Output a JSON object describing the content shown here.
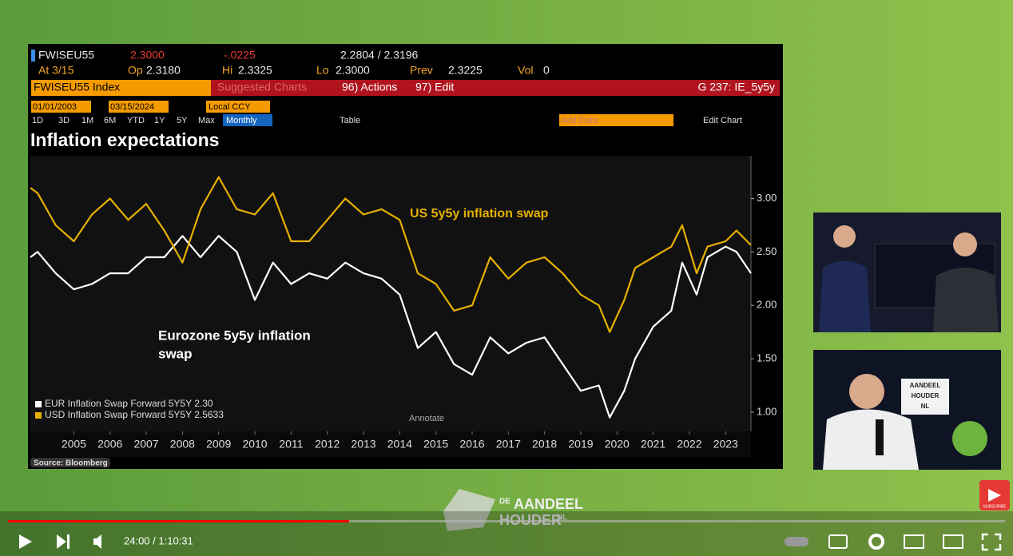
{
  "terminal": {
    "ticker": "FWISEU55",
    "last": "2.3000",
    "change": "-.0225",
    "range": "2.2804 / 2.3196",
    "at": "At 3/15",
    "op_label": "Op",
    "op": "2.3180",
    "hi_label": "Hi",
    "hi": "2.3325",
    "lo_label": "Lo",
    "lo": "2.3000",
    "prev_label": "Prev",
    "prev": "2.3225",
    "vol_label": "Vol",
    "vol": "0",
    "index": "FWISEU55 Index",
    "suggested": "Suggested Charts",
    "actions": "96) Actions",
    "edit": "97) Edit",
    "chart_id": "G 237: IE_5y5y",
    "start_date": "01/01/2003",
    "end_date": "03/15/2024",
    "currency": "Local CCY",
    "periods": [
      "1D",
      "3D",
      "1M",
      "6M",
      "YTD",
      "1Y",
      "5Y",
      "Max"
    ],
    "frequency": "Monthly",
    "table": "Table",
    "add_data": "Add Data",
    "edit_chart": "Edit Chart",
    "annotate": "Annotate",
    "source": "Source: Bloomberg"
  },
  "chart_data": {
    "type": "line",
    "title": "Inflation expectations",
    "annotations": [
      "US 5y5y inflation swap",
      "Eurozone 5y5y inflation",
      "swap"
    ],
    "x": [
      2004.3,
      2004.5,
      2005.0,
      2005.5,
      2006.0,
      2006.5,
      2007.0,
      2007.5,
      2008.0,
      2008.5,
      2009.0,
      2009.5,
      2010.0,
      2010.5,
      2011.0,
      2011.5,
      2012.0,
      2012.5,
      2013.0,
      2013.5,
      2014.0,
      2014.5,
      2015.0,
      2015.5,
      2016.0,
      2016.5,
      2017.0,
      2017.5,
      2018.0,
      2018.5,
      2019.0,
      2019.5,
      2020.0,
      2020.3,
      2020.7,
      2021.0,
      2021.5,
      2022.0,
      2022.3,
      2022.7,
      2023.0,
      2023.5,
      2023.8,
      2024.2
    ],
    "series": [
      {
        "name": "EUR Inflation Swap Forward 5Y5Y 2.30",
        "color": "#ffffff",
        "values": [
          2.45,
          2.5,
          2.3,
          2.15,
          2.2,
          2.3,
          2.3,
          2.45,
          2.45,
          2.65,
          2.45,
          2.65,
          2.5,
          2.05,
          2.4,
          2.2,
          2.3,
          2.25,
          2.4,
          2.3,
          2.25,
          2.1,
          1.6,
          1.75,
          1.45,
          1.35,
          1.7,
          1.55,
          1.65,
          1.7,
          1.45,
          1.2,
          1.25,
          0.95,
          1.2,
          1.5,
          1.8,
          1.95,
          2.4,
          2.1,
          2.45,
          2.55,
          2.5,
          2.3
        ]
      },
      {
        "name": "USD Inflation Swap Forward 5Y5Y 2.5633",
        "color": "#e6b000",
        "values": [
          3.1,
          3.05,
          2.75,
          2.6,
          2.85,
          3.0,
          2.8,
          2.95,
          2.7,
          2.4,
          2.9,
          3.2,
          2.9,
          2.85,
          3.05,
          2.6,
          2.6,
          2.8,
          3.0,
          2.85,
          2.9,
          2.8,
          2.3,
          2.2,
          1.95,
          2.0,
          2.45,
          2.25,
          2.4,
          2.45,
          2.3,
          2.1,
          2.0,
          1.75,
          2.05,
          2.35,
          2.45,
          2.55,
          2.75,
          2.3,
          2.55,
          2.6,
          2.7,
          2.5633
        ]
      }
    ],
    "xlim": [
      2004.3,
      2024.2
    ],
    "xticks": [
      {
        "value": 2005.5,
        "label": "2005"
      },
      {
        "value": 2006.5,
        "label": "2006"
      },
      {
        "value": 2007.5,
        "label": "2007"
      },
      {
        "value": 2008.5,
        "label": "2008"
      },
      {
        "value": 2009.5,
        "label": "2009"
      },
      {
        "value": 2010.5,
        "label": "2010"
      },
      {
        "value": 2011.5,
        "label": "2011"
      },
      {
        "value": 2012.5,
        "label": "2012"
      },
      {
        "value": 2013.5,
        "label": "2013"
      },
      {
        "value": 2014.5,
        "label": "2014"
      },
      {
        "value": 2015.5,
        "label": "2015"
      },
      {
        "value": 2016.5,
        "label": "2016"
      },
      {
        "value": 2017.5,
        "label": "2017"
      },
      {
        "value": 2018.5,
        "label": "2018"
      },
      {
        "value": 2019.5,
        "label": "2019"
      },
      {
        "value": 2020.5,
        "label": "2020"
      },
      {
        "value": 2021.5,
        "label": "2021"
      },
      {
        "value": 2022.5,
        "label": "2022"
      },
      {
        "value": 2023.5,
        "label": "2023"
      }
    ],
    "ylim": [
      0.82,
      3.4
    ],
    "yticks": [
      {
        "value": 1,
        "label": "1.00"
      },
      {
        "value": 1.5,
        "label": "1.50"
      },
      {
        "value": 2,
        "label": "2.00"
      },
      {
        "value": 2.5,
        "label": "2.50"
      },
      {
        "value": 3,
        "label": "3.00"
      }
    ],
    "legend": "lower left"
  },
  "video": {
    "time": "24:00 / 1:10:31",
    "logo": [
      "DE",
      "AANDEEL",
      "HOUDER",
      "NL"
    ],
    "sign": [
      "AANDEEL",
      "HOUDER",
      "NL"
    ],
    "subscribe": "SUBSCRIBE"
  }
}
